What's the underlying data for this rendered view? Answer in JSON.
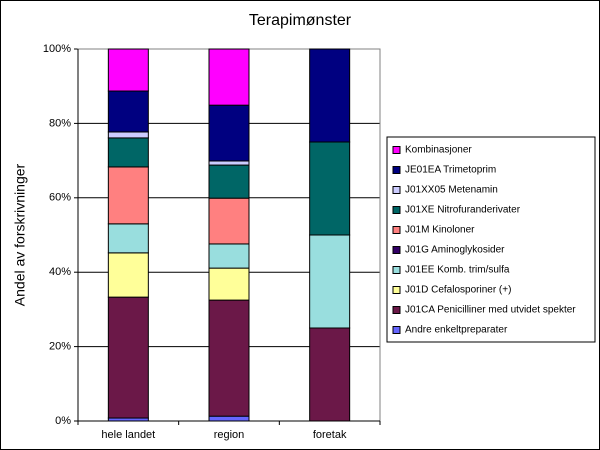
{
  "chart_data": {
    "type": "stacked_bar",
    "title": "Terapimønster",
    "y_label": "Andel av forskrivninger",
    "categories": [
      "hele landet",
      "region",
      "foretak"
    ],
    "ylim": [
      0,
      100
    ],
    "yticks": [
      {
        "value": 0,
        "label": "0%"
      },
      {
        "value": 20,
        "label": "20%"
      },
      {
        "value": 40,
        "label": "40%"
      },
      {
        "value": 60,
        "label": "60%"
      },
      {
        "value": 80,
        "label": "80%"
      },
      {
        "value": 100,
        "label": "100%"
      }
    ],
    "grid": true,
    "legend": "right",
    "series": [
      {
        "name": "Andre enkeltpreparater",
        "color": "#6666ff",
        "values": [
          0.8,
          1.3,
          0
        ]
      },
      {
        "name": "J01CA Penicilliner med utvidet spekter",
        "color": "#6b1848",
        "values": [
          32.5,
          31.2,
          25
        ]
      },
      {
        "name": "J01D Cefalosporiner (+)",
        "color": "#ffff99",
        "values": [
          11.9,
          8.6,
          0
        ]
      },
      {
        "name": "J01EE Komb. trim/sulfa",
        "color": "#99dede",
        "values": [
          7.8,
          6.5,
          25
        ]
      },
      {
        "name": "J01G Aminoglykosider",
        "color": "#330066",
        "values": [
          0,
          0,
          0
        ]
      },
      {
        "name": "J01M Kinoloner",
        "color": "#ff8080",
        "values": [
          15.3,
          12.3,
          0
        ]
      },
      {
        "name": "J01XE Nitrofuranderivater",
        "color": "#006666",
        "values": [
          7.8,
          8.9,
          25
        ]
      },
      {
        "name": "J01XX05 Metenamin",
        "color": "#ccccff",
        "values": [
          1.6,
          1.1,
          0
        ]
      },
      {
        "name": "JE01EA Trimetoprim",
        "color": "#000080",
        "values": [
          11.0,
          15.0,
          25
        ]
      },
      {
        "name": "Kombinasjoner",
        "color": "#ff00ff",
        "values": [
          11.3,
          15.1,
          0
        ]
      }
    ]
  }
}
